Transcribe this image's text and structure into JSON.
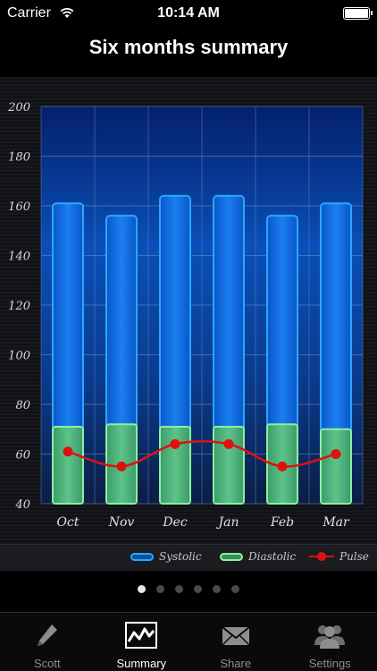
{
  "status_bar": {
    "carrier": "Carrier",
    "time": "10:14 AM"
  },
  "nav": {
    "title": "Six months summary"
  },
  "chart_data": {
    "type": "bar",
    "categories": [
      "Oct",
      "Nov",
      "Dec",
      "Jan",
      "Feb",
      "Mar"
    ],
    "series": [
      {
        "name": "Systolic",
        "values": [
          161,
          156,
          164,
          164,
          156,
          161
        ]
      },
      {
        "name": "Diastolic",
        "values": [
          71,
          72,
          71,
          71,
          72,
          70
        ]
      },
      {
        "name": "Pulse",
        "type": "line",
        "values": [
          61,
          55,
          64,
          64,
          55,
          60
        ]
      }
    ],
    "ylim": [
      40,
      200
    ],
    "yticks": [
      "40",
      "60",
      "80",
      "100",
      "120",
      "140",
      "160",
      "180",
      "200"
    ],
    "grid": true,
    "legend_position": "bottom-right",
    "colors": {
      "systolic": "#2aa6ff",
      "diastolic": "#8bf0a0",
      "pulse": "#e01010"
    }
  },
  "legend": {
    "systolic": "Systolic",
    "diastolic": "Diastolic",
    "pulse": "Pulse"
  },
  "pager": {
    "count": 6,
    "active": 0
  },
  "tabs": [
    {
      "label": "Scott",
      "icon": "pencil-icon",
      "active": false
    },
    {
      "label": "Summary",
      "icon": "chart-icon",
      "active": true
    },
    {
      "label": "Share",
      "icon": "envelope-icon",
      "active": false
    },
    {
      "label": "Settings",
      "icon": "people-icon",
      "active": false
    }
  ]
}
